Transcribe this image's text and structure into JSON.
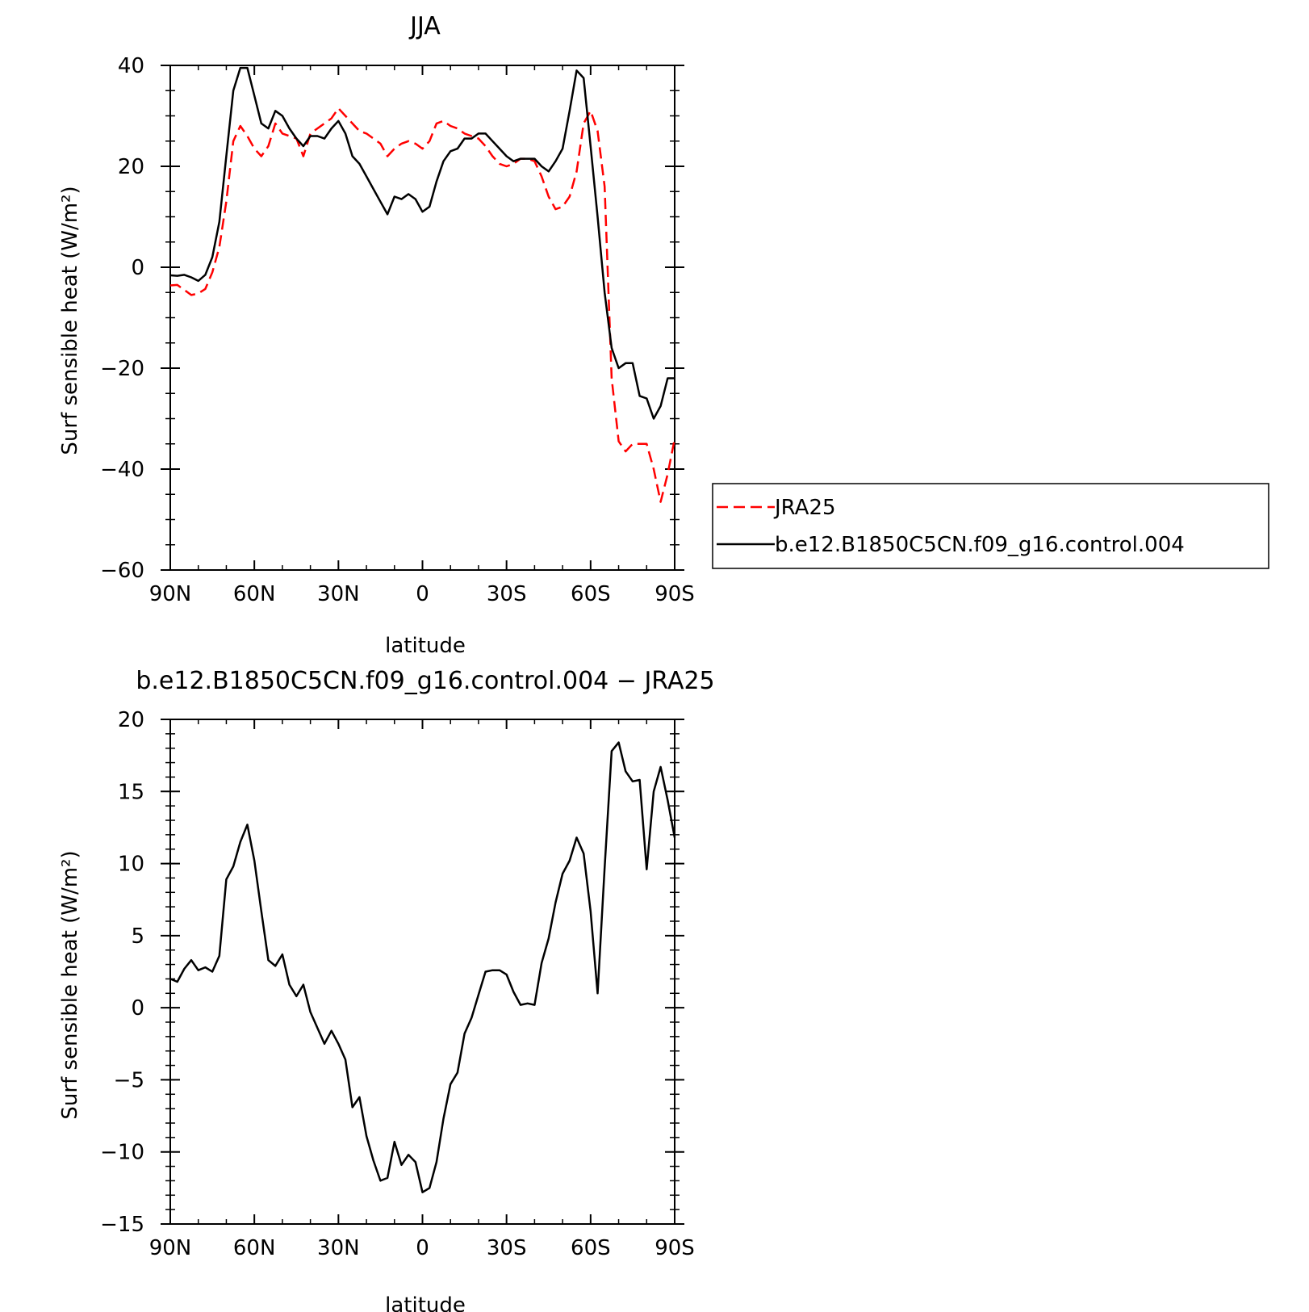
{
  "chart_data": [
    {
      "type": "line",
      "title": "JJA",
      "xlabel": "latitude",
      "ylabel": "Surf sensible heat (W/m²)",
      "ylim": [
        -60,
        40
      ],
      "xlim": [
        -90,
        90
      ],
      "x_ticks": [
        -90,
        -60,
        -30,
        0,
        30,
        60,
        90
      ],
      "x_tick_labels": [
        "90N",
        "60N",
        "30N",
        "0",
        "30S",
        "60S",
        "90S"
      ],
      "y_ticks": [
        -60,
        -40,
        -20,
        0,
        20,
        40
      ],
      "y_tick_labels": [
        "−60",
        "−40",
        "−20",
        "0",
        "20",
        "40"
      ],
      "legend_position": "right",
      "series": [
        {
          "name": "JRA25",
          "color": "#ff0000",
          "style": "dashed",
          "x": [
            -90,
            -87.5,
            -85,
            -82.5,
            -80,
            -77.5,
            -75,
            -72.5,
            -70,
            -67.5,
            -65,
            -62.5,
            -60,
            -57.5,
            -55,
            -52.5,
            -50,
            -47.5,
            -45,
            -42.5,
            -40,
            -37.5,
            -35,
            -32.5,
            -30,
            -27.5,
            -25,
            -22.5,
            -20,
            -17.5,
            -15,
            -12.5,
            -10,
            -7.5,
            -5,
            -2.5,
            0,
            2.5,
            5,
            7.5,
            10,
            12.5,
            15,
            17.5,
            20,
            22.5,
            25,
            27.5,
            30,
            32.5,
            35,
            37.5,
            40,
            42.5,
            45,
            47.5,
            50,
            52.5,
            55,
            57.5,
            60,
            62.5,
            65,
            67.5,
            70,
            72.5,
            75,
            77.5,
            80,
            82.5,
            85,
            87.5,
            90
          ],
          "values": [
            -3.6,
            -3.5,
            -4.5,
            -5.5,
            -5.2,
            -4.3,
            -1,
            4,
            13,
            25,
            28,
            26,
            23.5,
            22,
            24,
            28.5,
            26.5,
            26,
            25.5,
            22,
            26.5,
            27.5,
            28.5,
            29.5,
            31.5,
            30,
            28.5,
            27,
            26.5,
            25.5,
            24.5,
            22,
            23.5,
            24.5,
            25,
            24.5,
            23.5,
            25,
            28.5,
            29,
            28,
            27.5,
            26.5,
            26,
            25.5,
            24,
            22,
            20.5,
            20,
            20.5,
            21.5,
            21.5,
            21,
            18,
            14,
            11.5,
            12,
            14,
            19,
            28.5,
            31,
            27,
            16,
            -22,
            -34.5,
            -36.5,
            -35,
            -35,
            -35,
            -40,
            -46.5,
            -41,
            -34
          ]
        },
        {
          "name": "b.e12.B1850C5CN.f09_g16.control.004",
          "color": "#000000",
          "style": "solid",
          "x": [
            -90,
            -87.5,
            -85,
            -82.5,
            -80,
            -77.5,
            -75,
            -72.5,
            -70,
            -67.5,
            -65,
            -62.5,
            -60,
            -57.5,
            -55,
            -52.5,
            -50,
            -47.5,
            -45,
            -42.5,
            -40,
            -37.5,
            -35,
            -32.5,
            -30,
            -27.5,
            -25,
            -22.5,
            -20,
            -17.5,
            -15,
            -12.5,
            -10,
            -7.5,
            -5,
            -2.5,
            0,
            2.5,
            5,
            7.5,
            10,
            12.5,
            15,
            17.5,
            20,
            22.5,
            25,
            27.5,
            30,
            32.5,
            35,
            37.5,
            40,
            42.5,
            45,
            47.5,
            50,
            52.5,
            55,
            57.5,
            60,
            62.5,
            65,
            67.5,
            70,
            72.5,
            75,
            77.5,
            80,
            82.5,
            85,
            87.5,
            90
          ],
          "values": [
            -1.6,
            -1.7,
            -1.5,
            -2,
            -2.7,
            -1.5,
            2,
            9,
            22,
            35,
            39.5,
            39.5,
            34,
            28.5,
            27.5,
            31,
            30,
            27.5,
            25.5,
            24,
            26,
            26,
            25.5,
            27.5,
            29,
            26.5,
            22,
            20.5,
            18,
            15.5,
            13,
            10.5,
            14,
            13.5,
            14.5,
            13.5,
            11,
            12,
            17,
            21,
            23,
            23.5,
            25.5,
            25.5,
            26.5,
            26.5,
            25,
            23.5,
            22,
            21,
            21.5,
            21.5,
            21.5,
            20,
            19,
            21,
            23.5,
            31,
            39,
            37.5,
            24,
            10,
            -5,
            -16,
            -20,
            -19,
            -19,
            -25.5,
            -26,
            -30,
            -27.5,
            -22,
            -22
          ]
        }
      ]
    },
    {
      "type": "line",
      "title": "b.e12.B1850C5CN.f09_g16.control.004 − JRA25",
      "xlabel": "latitude",
      "ylabel": "Surf sensible heat (W/m²)",
      "ylim": [
        -15,
        20
      ],
      "xlim": [
        -90,
        90
      ],
      "x_ticks": [
        -90,
        -60,
        -30,
        0,
        30,
        60,
        90
      ],
      "x_tick_labels": [
        "90N",
        "60N",
        "30N",
        "0",
        "30S",
        "60S",
        "90S"
      ],
      "y_ticks": [
        -15,
        -10,
        -5,
        0,
        5,
        10,
        15,
        20
      ],
      "y_tick_labels": [
        "−15",
        "−10",
        "−5",
        "0",
        "5",
        "10",
        "15",
        "20"
      ],
      "series": [
        {
          "color": "#000000",
          "style": "solid",
          "x": [
            -90,
            -87.5,
            -85,
            -82.5,
            -80,
            -77.5,
            -75,
            -72.5,
            -70,
            -67.5,
            -65,
            -62.5,
            -60,
            -57.5,
            -55,
            -52.5,
            -50,
            -47.5,
            -45,
            -42.5,
            -40,
            -37.5,
            -35,
            -32.5,
            -30,
            -27.5,
            -25,
            -22.5,
            -20,
            -17.5,
            -15,
            -12.5,
            -10,
            -7.5,
            -5,
            -2.5,
            0,
            2.5,
            5,
            7.5,
            10,
            12.5,
            15,
            17.5,
            20,
            22.5,
            25,
            27.5,
            30,
            32.5,
            35,
            37.5,
            40,
            42.5,
            45,
            47.5,
            50,
            52.5,
            55,
            57.5,
            60,
            62.5,
            65,
            67.5,
            70,
            72.5,
            75,
            77.5,
            80,
            82.5,
            85,
            87.5,
            90
          ],
          "values": [
            2,
            1.8,
            2.7,
            3.3,
            2.6,
            2.8,
            2.5,
            3.6,
            8.9,
            9.8,
            11.5,
            12.7,
            10.2,
            6.7,
            3.3,
            2.9,
            3.7,
            1.6,
            0.8,
            1.6,
            -0.3,
            -1.4,
            -2.5,
            -1.6,
            -2.5,
            -3.6,
            -6.9,
            -6.2,
            -8.9,
            -10.6,
            -12,
            -11.8,
            -9.3,
            -10.9,
            -10.2,
            -10.7,
            -12.8,
            -12.5,
            -10.7,
            -7.7,
            -5.3,
            -4.5,
            -1.8,
            -0.7,
            0.9,
            2.5,
            2.6,
            2.6,
            2.3,
            1.1,
            0.2,
            0.3,
            0.2,
            3.1,
            4.8,
            7.3,
            9.3,
            10.2,
            11.8,
            10.7,
            6.7,
            1,
            9.7,
            17.8,
            18.4,
            16.4,
            15.7,
            15.8,
            9.6,
            15,
            16.7,
            14.4,
            11.8
          ]
        }
      ]
    }
  ]
}
